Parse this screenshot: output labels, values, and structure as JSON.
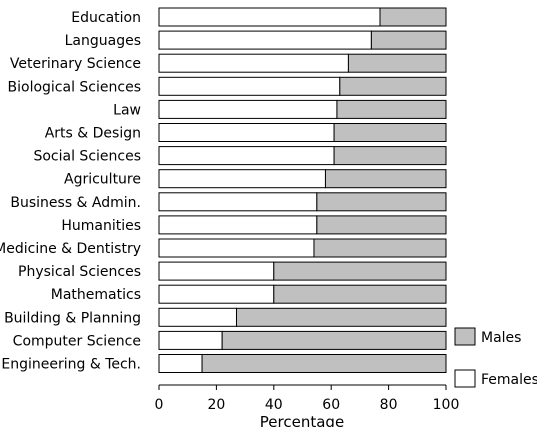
{
  "chart_data": {
    "type": "bar",
    "stacked": true,
    "orientation": "horizontal",
    "title": "",
    "xlabel": "Percentage",
    "ylabel": "",
    "xlim": [
      0,
      100
    ],
    "xticks": [
      0,
      20,
      40,
      60,
      80,
      100
    ],
    "legend_position": "right",
    "categories": [
      "Education",
      "Languages",
      "Veterinary Science",
      "Biological Sciences",
      "Law",
      "Arts & Design",
      "Social Sciences",
      "Agriculture",
      "Business & Admin.",
      "Humanities",
      "Medicine & Dentistry",
      "Physical Sciences",
      "Mathematics",
      "Building & Planning",
      "Computer Science",
      "Engineering & Tech."
    ],
    "series": [
      {
        "name": "Females",
        "color": "#ffffff",
        "values": [
          77,
          74,
          66,
          63,
          62,
          61,
          61,
          58,
          55,
          55,
          54,
          40,
          40,
          27,
          22,
          15
        ]
      },
      {
        "name": "Males",
        "color": "#c0c0c0",
        "values": [
          23,
          26,
          34,
          37,
          38,
          39,
          39,
          42,
          45,
          45,
          46,
          60,
          60,
          73,
          78,
          85
        ]
      }
    ]
  }
}
